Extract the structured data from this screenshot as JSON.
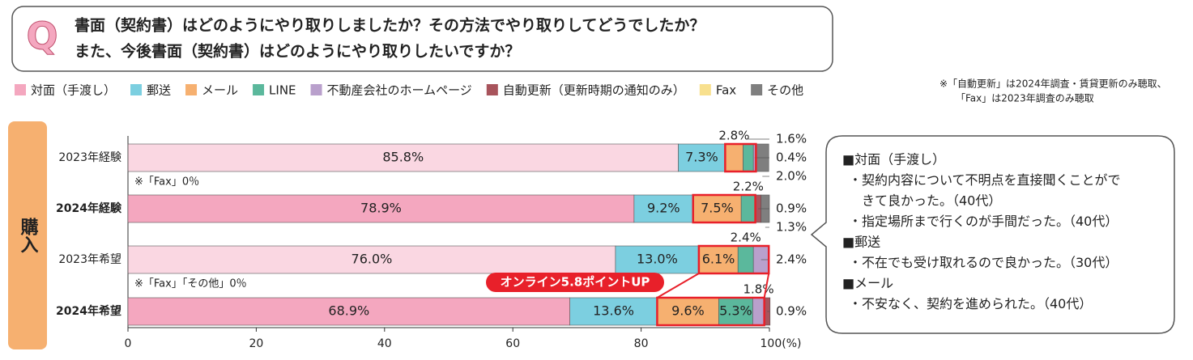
{
  "q_mark": "Q",
  "question": [
    "書面（契約書）はどのようにやり取りしましたか？その方法でやり取りしてどうでしたか？",
    "また、今後書面（契約書）はどのようにやり取りしたいですか？"
  ],
  "note": [
    "※「自動更新」は2024年調査・賃貸更新のみ聴取、",
    "「Fax」は2023年調査のみ聴取"
  ],
  "section": "購入",
  "comments": [
    "■対面（手渡し）",
    "・契約内容について不明点を直接聞くことがで",
    "きて良かった。（40代）",
    "・指定場所まで行くのが手間だった。（40代）",
    "■郵送",
    "・不在でも受け取れるので良かった。（30代）",
    "■メール",
    "・不安なく、契約を進められた。（40代）"
  ],
  "chart_data": {
    "type": "stacked-bar-horizontal",
    "categories": [
      "2023年経験",
      "2024年経験",
      "2023年希望",
      "2024年希望"
    ],
    "row_notes": [
      "※「Fax」0％",
      null,
      "※「Fax」「その他」0％",
      null
    ],
    "annotation": "オンライン5.8ポイントUP",
    "xlim": [
      0,
      100
    ],
    "xticks": [
      0,
      20,
      40,
      60,
      80,
      {
        "value": 100,
        "label": "100(%)"
      }
    ],
    "series": [
      {
        "name": "対面（手渡し）",
        "color": "#f4a7bf",
        "values": [
          85.8,
          78.9,
          76,
          68.9
        ],
        "value_labels": [
          "85.8%",
          "78.9%",
          "76.0%",
          "68.9%"
        ]
      },
      {
        "name": "郵送",
        "color": "#7ccfe0",
        "values": [
          7.3,
          9.2,
          13,
          13.6
        ],
        "value_labels": [
          "7.3%",
          "9.2%",
          "13.0%",
          "13.6%"
        ]
      },
      {
        "name": "メール",
        "color": "#f6b070",
        "values": [
          2.8,
          7.5,
          6.1,
          9.6
        ],
        "value_labels": [
          "2.8%",
          "7.5%",
          "6.1%",
          "9.6%"
        ]
      },
      {
        "name": "LINE",
        "color": "#5bb89c",
        "values": [
          1.6,
          2.2,
          2.4,
          5.3
        ],
        "value_labels": [
          "1.6%",
          "2.2%",
          "2.4%",
          "5.3%"
        ]
      },
      {
        "name": "不動産会社のホームページ",
        "color": "#b9a0cc",
        "values": [
          0.4,
          null,
          2.4,
          1.8
        ],
        "value_labels": [
          "0.4%",
          null,
          "2.4%",
          "1.8%"
        ]
      },
      {
        "name": "自動更新（更新時期の通知のみ）",
        "color": "#a8545c",
        "values": [
          null,
          0.9,
          null,
          0.9
        ],
        "value_labels": [
          null,
          "0.9%",
          null,
          "0.9%"
        ]
      },
      {
        "name": "Fax",
        "color": "#f8e08e",
        "values": [
          null,
          null,
          null,
          null
        ],
        "value_labels": [
          null,
          null,
          null,
          null
        ]
      },
      {
        "name": "その他",
        "color": "#7f7f7f",
        "values": [
          2.0,
          1.3,
          null,
          null
        ],
        "value_labels": [
          "2.0%",
          "1.3%",
          null,
          null
        ]
      }
    ]
  }
}
